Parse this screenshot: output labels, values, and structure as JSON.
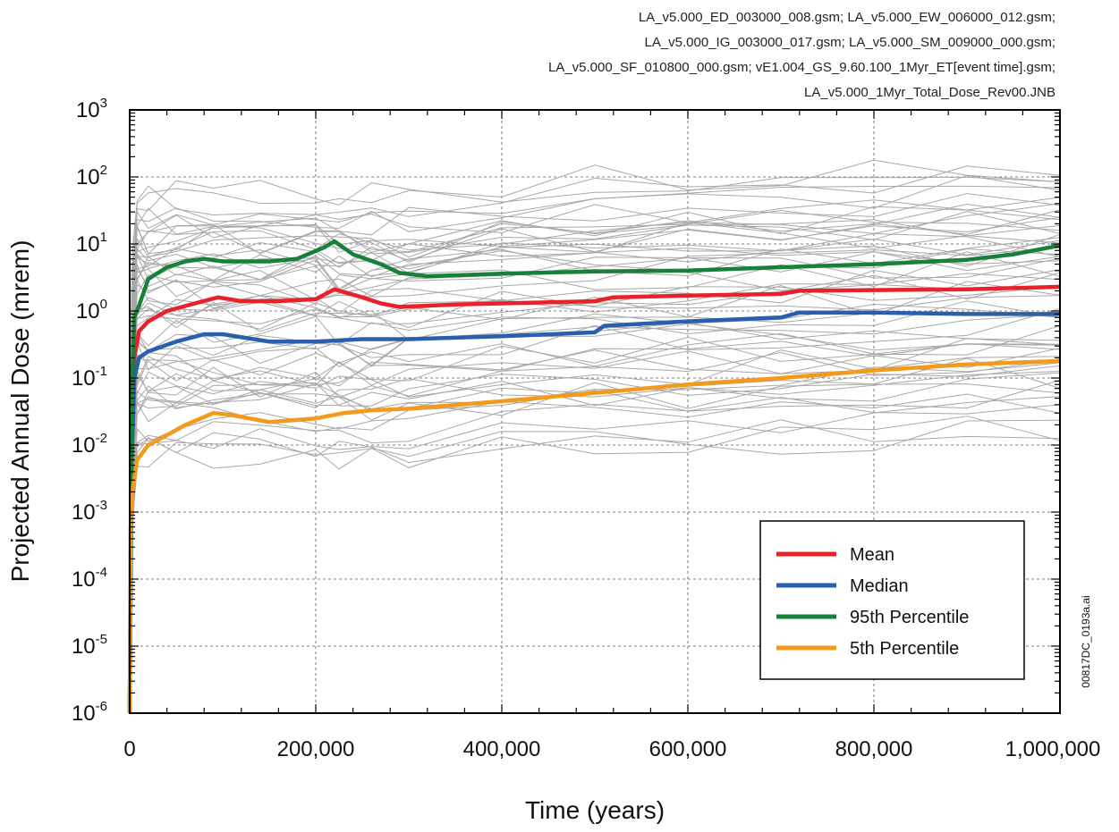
{
  "header": {
    "source_lines": [
      "LA_v5.000_ED_003000_008.gsm; LA_v5.000_EW_006000_012.gsm;",
      "LA_v5.000_IG_003000_017.gsm; LA_v5.000_SM_009000_000.gsm;",
      "LA_v5.000_SF_010800_000.gsm; vE1.004_GS_9.60.100_1Myr_ET[event time].gsm;",
      "LA_v5.000_1Myr_Total_Dose_Rev00.JNB"
    ]
  },
  "figure_id": "00817DC_0193a.ai",
  "chart_data": {
    "type": "line",
    "xlabel": "Time (years)",
    "ylabel": "Projected Annual Dose (mrem)",
    "xlim": [
      0,
      1000000
    ],
    "ylim": [
      1e-06,
      1000
    ],
    "yscale": "log",
    "grid": true,
    "legend_position": "bottom-right",
    "x_ticks": [
      {
        "value": 0,
        "label": "0"
      },
      {
        "value": 200000,
        "label": "200,000"
      },
      {
        "value": 400000,
        "label": "400,000"
      },
      {
        "value": 600000,
        "label": "600,000"
      },
      {
        "value": 800000,
        "label": "800,000"
      },
      {
        "value": 1000000,
        "label": "1,000,000"
      }
    ],
    "y_ticks": [
      {
        "value": 1000,
        "base": "10",
        "exp": "3"
      },
      {
        "value": 100,
        "base": "10",
        "exp": "2"
      },
      {
        "value": 10,
        "base": "10",
        "exp": "1"
      },
      {
        "value": 1,
        "base": "10",
        "exp": "0"
      },
      {
        "value": 0.1,
        "base": "10",
        "exp": "-1"
      },
      {
        "value": 0.01,
        "base": "10",
        "exp": "-2"
      },
      {
        "value": 0.001,
        "base": "10",
        "exp": "-3"
      },
      {
        "value": 0.0001,
        "base": "10",
        "exp": "-4"
      },
      {
        "value": 1e-05,
        "base": "10",
        "exp": "-5"
      },
      {
        "value": 1e-06,
        "base": "10",
        "exp": "-6"
      }
    ],
    "realizations": {
      "color": "#a8a8a8",
      "count_shown": 60,
      "band_low": 0.005,
      "band_high": 60
    },
    "series": [
      {
        "name": "Mean",
        "color": "#e8212a",
        "points": [
          [
            0,
            1e-06
          ],
          [
            2000,
            0.01
          ],
          [
            5000,
            0.2
          ],
          [
            10000,
            0.5
          ],
          [
            20000,
            0.7
          ],
          [
            40000,
            1.0
          ],
          [
            70000,
            1.3
          ],
          [
            95000,
            1.6
          ],
          [
            120000,
            1.4
          ],
          [
            160000,
            1.4
          ],
          [
            200000,
            1.5
          ],
          [
            220000,
            2.1
          ],
          [
            250000,
            1.6
          ],
          [
            270000,
            1.3
          ],
          [
            290000,
            1.15
          ],
          [
            350000,
            1.25
          ],
          [
            400000,
            1.3
          ],
          [
            500000,
            1.4
          ],
          [
            520000,
            1.6
          ],
          [
            600000,
            1.7
          ],
          [
            700000,
            1.8
          ],
          [
            720000,
            2.0
          ],
          [
            800000,
            2.05
          ],
          [
            900000,
            2.1
          ],
          [
            1000000,
            2.3
          ]
        ]
      },
      {
        "name": "Median",
        "color": "#2a5fae",
        "points": [
          [
            0,
            1e-06
          ],
          [
            2000,
            0.005
          ],
          [
            5000,
            0.1
          ],
          [
            10000,
            0.2
          ],
          [
            20000,
            0.25
          ],
          [
            50000,
            0.35
          ],
          [
            80000,
            0.45
          ],
          [
            100000,
            0.45
          ],
          [
            150000,
            0.35
          ],
          [
            200000,
            0.35
          ],
          [
            250000,
            0.38
          ],
          [
            300000,
            0.38
          ],
          [
            400000,
            0.42
          ],
          [
            500000,
            0.48
          ],
          [
            510000,
            0.6
          ],
          [
            600000,
            0.7
          ],
          [
            700000,
            0.8
          ],
          [
            720000,
            0.95
          ],
          [
            800000,
            0.95
          ],
          [
            900000,
            0.9
          ],
          [
            1000000,
            0.9
          ]
        ]
      },
      {
        "name": "95th Percentile",
        "color": "#17803a",
        "points": [
          [
            0,
            1e-06
          ],
          [
            2000,
            0.05
          ],
          [
            5000,
            0.8
          ],
          [
            10000,
            1.2
          ],
          [
            20000,
            3.0
          ],
          [
            40000,
            4.5
          ],
          [
            60000,
            5.5
          ],
          [
            80000,
            6.0
          ],
          [
            100000,
            5.5
          ],
          [
            150000,
            5.5
          ],
          [
            180000,
            6.0
          ],
          [
            210000,
            9.0
          ],
          [
            220000,
            11.0
          ],
          [
            240000,
            7.0
          ],
          [
            270000,
            5.0
          ],
          [
            290000,
            3.7
          ],
          [
            320000,
            3.3
          ],
          [
            400000,
            3.6
          ],
          [
            500000,
            3.9
          ],
          [
            600000,
            4.0
          ],
          [
            700000,
            4.5
          ],
          [
            800000,
            5.0
          ],
          [
            900000,
            5.8
          ],
          [
            950000,
            7.0
          ],
          [
            1000000,
            9.5
          ]
        ]
      },
      {
        "name": "5th Percentile",
        "color": "#f39a1c",
        "points": [
          [
            0,
            1e-06
          ],
          [
            1000,
            0.0006
          ],
          [
            3000,
            0.002
          ],
          [
            8000,
            0.006
          ],
          [
            20000,
            0.01
          ],
          [
            40000,
            0.014
          ],
          [
            60000,
            0.02
          ],
          [
            90000,
            0.03
          ],
          [
            110000,
            0.028
          ],
          [
            150000,
            0.022
          ],
          [
            200000,
            0.025
          ],
          [
            230000,
            0.03
          ],
          [
            260000,
            0.033
          ],
          [
            300000,
            0.035
          ],
          [
            400000,
            0.045
          ],
          [
            500000,
            0.06
          ],
          [
            600000,
            0.08
          ],
          [
            700000,
            0.1
          ],
          [
            800000,
            0.13
          ],
          [
            900000,
            0.16
          ],
          [
            1000000,
            0.18
          ]
        ]
      }
    ]
  }
}
